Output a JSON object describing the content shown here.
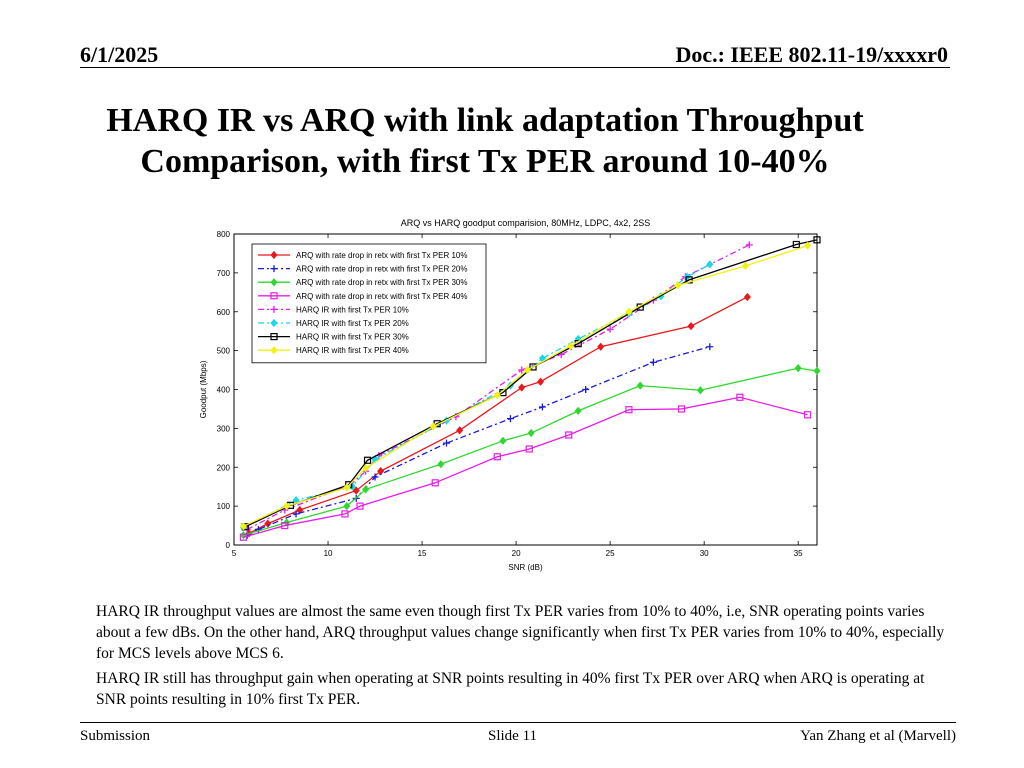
{
  "header": {
    "date": "6/1/2025",
    "doc": "Doc.: IEEE 802.11-19/xxxxr0"
  },
  "title": "HARQ IR vs ARQ with link adaptation Throughput Comparison, with first Tx PER around 10-40%",
  "paragraphs": [
    "HARQ IR throughput values are almost the same even though first Tx PER varies from 10% to 40%, i.e, SNR operating points varies about a few dBs. On the other hand, ARQ throughput values change significantly when first Tx PER varies from 10% to 40%, especially for MCS levels above MCS 6.",
    "HARQ IR still has throughput gain when operating at SNR points resulting in 40% first Tx PER over ARQ when ARQ is operating at SNR points resulting in 10% first Tx PER."
  ],
  "footer": {
    "left": "Submission",
    "center": "Slide 11",
    "right": "Yan Zhang et al (Marvell)"
  },
  "chart_data": {
    "type": "line",
    "title": "ARQ vs HARQ goodput comparision, 80MHz, LDPC, 4x2, 2SS",
    "xlabel": "SNR (dB)",
    "ylabel": "Goodput (Mbps)",
    "xlim": [
      5,
      36
    ],
    "ylim": [
      0,
      800
    ],
    "xticks": [
      5,
      10,
      15,
      20,
      25,
      30,
      35
    ],
    "yticks": [
      0,
      100,
      200,
      300,
      400,
      500,
      600,
      700,
      800
    ],
    "legend_position": "top-left",
    "series": [
      {
        "name": "ARQ with rate drop in retx with first Tx PER 10%",
        "color": "#e8191c",
        "dash": "solid",
        "marker": "diamond",
        "points": [
          [
            5.8,
            30
          ],
          [
            6.8,
            55
          ],
          [
            8.5,
            90
          ],
          [
            11.5,
            140
          ],
          [
            12.8,
            190
          ],
          [
            17,
            295
          ],
          [
            20.3,
            405
          ],
          [
            21.3,
            420
          ],
          [
            24.5,
            510
          ],
          [
            29.3,
            563
          ],
          [
            32.3,
            638
          ]
        ]
      },
      {
        "name": "ARQ with rate drop in retx with first Tx PER 20%",
        "color": "#1a1ad9",
        "dash": "6,3,2,3",
        "marker": "plus",
        "points": [
          [
            5.7,
            25
          ],
          [
            6.3,
            40
          ],
          [
            8.3,
            80
          ],
          [
            11.5,
            120
          ],
          [
            12.5,
            175
          ],
          [
            16.3,
            262
          ],
          [
            19.7,
            325
          ],
          [
            21.4,
            355
          ],
          [
            23.7,
            400
          ],
          [
            27.3,
            470
          ],
          [
            30.3,
            510
          ]
        ]
      },
      {
        "name": "ARQ with rate drop in retx with first Tx PER 30%",
        "color": "#2ed82e",
        "dash": "solid",
        "marker": "diamond",
        "points": [
          [
            5.5,
            25
          ],
          [
            7.8,
            58
          ],
          [
            11,
            100
          ],
          [
            12,
            143
          ],
          [
            16,
            208
          ],
          [
            19.3,
            268
          ],
          [
            20.8,
            288
          ],
          [
            23.3,
            345
          ],
          [
            26.6,
            410
          ],
          [
            29.8,
            398
          ],
          [
            35,
            455
          ],
          [
            36,
            448
          ]
        ]
      },
      {
        "name": "ARQ with rate drop in retx with first Tx PER 40%",
        "color": "#e81ce8",
        "dash": "solid",
        "marker": "square",
        "points": [
          [
            5.5,
            20
          ],
          [
            7.7,
            50
          ],
          [
            10.9,
            80
          ],
          [
            11.7,
            100
          ],
          [
            15.7,
            160
          ],
          [
            19,
            227
          ],
          [
            20.7,
            247
          ],
          [
            22.8,
            283
          ],
          [
            26,
            348
          ],
          [
            28.8,
            350
          ],
          [
            31.9,
            380
          ],
          [
            35.5,
            335
          ]
        ]
      },
      {
        "name": "HARQ IR with first Tx PER 10%",
        "color": "#e81ce8",
        "dash": "6,3,2,3",
        "marker": "plus",
        "points": [
          [
            5.7,
            40
          ],
          [
            7.7,
            90
          ],
          [
            11.2,
            155
          ],
          [
            12,
            190
          ],
          [
            12.7,
            230
          ],
          [
            16.8,
            330
          ],
          [
            20.3,
            450
          ],
          [
            22.4,
            490
          ],
          [
            25,
            555
          ],
          [
            27.3,
            630
          ],
          [
            29,
            690
          ],
          [
            32.4,
            772
          ]
        ]
      },
      {
        "name": "HARQ IR with first Tx PER 20%",
        "color": "#18d8e8",
        "dash": "6,3,2,3",
        "marker": "diamond",
        "points": [
          [
            5.5,
            45
          ],
          [
            8.3,
            115
          ],
          [
            11.3,
            150
          ],
          [
            12.5,
            220
          ],
          [
            16.3,
            320
          ],
          [
            19.7,
            410
          ],
          [
            21.4,
            480
          ],
          [
            23.3,
            530
          ],
          [
            26,
            595
          ],
          [
            27.7,
            640
          ],
          [
            29.1,
            690
          ],
          [
            30.3,
            722
          ]
        ]
      },
      {
        "name": "HARQ IR with first Tx PER 30%",
        "color": "#000000",
        "dash": "solid",
        "marker": "square",
        "points": [
          [
            5.6,
            47
          ],
          [
            8,
            102
          ],
          [
            11.1,
            155
          ],
          [
            12.1,
            218
          ],
          [
            15.8,
            312
          ],
          [
            19.3,
            392
          ],
          [
            20.9,
            458
          ],
          [
            23.3,
            518
          ],
          [
            26.6,
            612
          ],
          [
            29.2,
            682
          ],
          [
            34.9,
            773
          ],
          [
            36,
            785
          ]
        ]
      },
      {
        "name": "HARQ IR with first Tx PER 40%",
        "color": "#f2f212",
        "dash": "solid",
        "marker": "diamond",
        "points": [
          [
            5.5,
            48
          ],
          [
            7.8,
            100
          ],
          [
            11,
            148
          ],
          [
            12,
            198
          ],
          [
            15.6,
            305
          ],
          [
            19,
            385
          ],
          [
            20.6,
            450
          ],
          [
            22.9,
            512
          ],
          [
            26,
            600
          ],
          [
            28.6,
            668
          ],
          [
            32.2,
            718
          ],
          [
            35.5,
            770
          ]
        ]
      }
    ]
  }
}
